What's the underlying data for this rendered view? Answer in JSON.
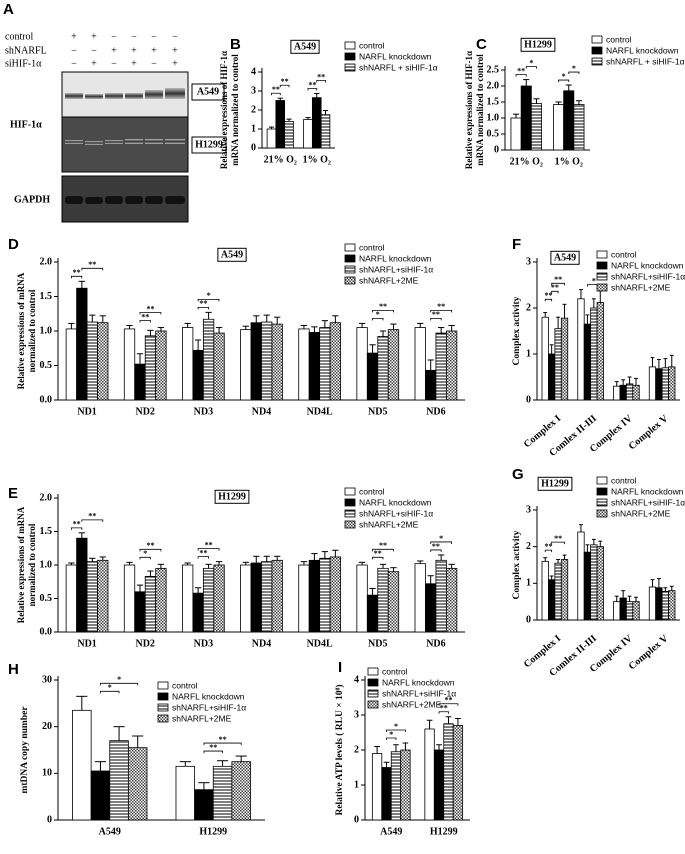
{
  "blot": {
    "panel": "A",
    "rows": [
      {
        "label": "control",
        "signs": [
          "+",
          "+",
          "−",
          "−",
          "−",
          "−"
        ]
      },
      {
        "label": "shNARFL",
        "signs": [
          "−",
          "−",
          "+",
          "+",
          "+",
          "+"
        ]
      },
      {
        "label": "siHIF-1α",
        "signs": [
          "−",
          "+",
          "−",
          "+",
          "−",
          "+"
        ]
      }
    ],
    "protein": "HIF-1α",
    "cells": [
      "A549",
      "H1299"
    ],
    "loading": "GAPDH"
  },
  "chart_data": [
    {
      "type": "bar",
      "panel": "B",
      "title": "A549",
      "ylabel": [
        "Relative expressions of HIF-1α",
        "mRNA normalized to control"
      ],
      "categories": [
        "21% O₂",
        "1% O₂"
      ],
      "ylim": [
        0,
        4
      ],
      "yticks": [
        0,
        1,
        2,
        3,
        4
      ],
      "series": [
        {
          "name": "control",
          "color": "#ffffff",
          "hatch": "none",
          "values": [
            1.0,
            1.5
          ],
          "errors": [
            0.1,
            0.1
          ]
        },
        {
          "name": "NARFL knockdown",
          "color": "#000000",
          "hatch": "none",
          "values": [
            2.5,
            2.65
          ],
          "errors": [
            0.12,
            0.22
          ]
        },
        {
          "name": "shNARFL + siHIF-1α",
          "color": "#ffffff",
          "hatch": "hlines",
          "values": [
            1.4,
            1.75
          ],
          "errors": [
            0.12,
            0.22
          ]
        }
      ],
      "brackets": [
        [
          0,
          0,
          1,
          "**"
        ],
        [
          0,
          1,
          2,
          "**"
        ],
        [
          1,
          0,
          1,
          "**"
        ],
        [
          1,
          1,
          2,
          "**"
        ]
      ]
    },
    {
      "type": "bar",
      "panel": "C",
      "title": "H1299",
      "ylabel": [
        "Relative expressions of HIF-1α",
        "mRNA normalized to control"
      ],
      "categories": [
        "21% O₂",
        "1% O₂"
      ],
      "ylim": [
        0,
        2.5
      ],
      "yticks": [
        0,
        0.5,
        {
          "value": 1,
          "label": "1.0"
        },
        1.5,
        {
          "value": 2,
          "label": "2.0"
        },
        2.5
      ],
      "series": [
        {
          "name": "control",
          "color": "#ffffff",
          "hatch": "none",
          "values": [
            1.0,
            1.42
          ],
          "errors": [
            0.12,
            0.08
          ]
        },
        {
          "name": "NARFL knockdown",
          "color": "#000000",
          "hatch": "none",
          "values": [
            2.0,
            1.85
          ],
          "errors": [
            0.2,
            0.18
          ]
        },
        {
          "name": "shNARFL + siHIF-1α",
          "color": "#ffffff",
          "hatch": "hlines",
          "values": [
            1.45,
            1.42
          ],
          "errors": [
            0.15,
            0.12
          ]
        }
      ],
      "brackets": [
        [
          0,
          0,
          1,
          "**"
        ],
        [
          0,
          1,
          2,
          "*"
        ],
        [
          1,
          0,
          1,
          "*"
        ],
        [
          1,
          1,
          2,
          "*"
        ]
      ]
    },
    {
      "type": "bar",
      "panel": "D",
      "title": "A549",
      "ylabel": [
        "Relative expressions of mRNA",
        "normalized to control"
      ],
      "categories": [
        "ND1",
        "ND2",
        "ND3",
        "ND4",
        "ND4L",
        "ND5",
        "ND6"
      ],
      "ylim": [
        0,
        2
      ],
      "yticks": [
        {
          "value": 0,
          "label": "0.0"
        },
        0.5,
        {
          "value": 1,
          "label": "1.0"
        },
        1.5,
        {
          "value": 2,
          "label": "2.0"
        }
      ],
      "series": [
        {
          "name": "control",
          "color": "#ffffff",
          "hatch": "none",
          "values": [
            1.03,
            1.03,
            1.05,
            1.02,
            1.03,
            1.05,
            1.05
          ],
          "errors": [
            0.08,
            0.05,
            0.06,
            0.05,
            0.05,
            0.06,
            0.06
          ]
        },
        {
          "name": "NARFL knockdown",
          "color": "#000000",
          "hatch": "none",
          "values": [
            1.62,
            0.52,
            0.72,
            1.12,
            0.98,
            0.68,
            0.43
          ],
          "errors": [
            0.1,
            0.15,
            0.15,
            0.1,
            0.08,
            0.12,
            0.15
          ]
        },
        {
          "name": "shNARFL+siHIF-1α",
          "color": "#ffffff",
          "hatch": "hlines",
          "values": [
            1.13,
            0.93,
            1.17,
            1.13,
            1.05,
            0.92,
            0.97
          ],
          "errors": [
            0.1,
            0.08,
            0.1,
            0.1,
            0.1,
            0.08,
            0.08
          ]
        },
        {
          "name": "shNARFL+2ME",
          "color": "#ffffff",
          "hatch": "checker",
          "values": [
            1.12,
            1.0,
            0.97,
            1.1,
            1.12,
            1.02,
            1.0
          ],
          "errors": [
            0.1,
            0.05,
            0.08,
            0.1,
            0.1,
            0.08,
            0.08
          ]
        }
      ],
      "brackets": [
        [
          0,
          0,
          1,
          "**"
        ],
        [
          0,
          1,
          3,
          "**"
        ],
        [
          1,
          1,
          2,
          "**"
        ],
        [
          1,
          1,
          3,
          "**"
        ],
        [
          2,
          1,
          2,
          "**"
        ],
        [
          2,
          1,
          3,
          "*"
        ],
        [
          5,
          1,
          2,
          "*"
        ],
        [
          5,
          1,
          3,
          "**"
        ],
        [
          6,
          1,
          2,
          "**"
        ],
        [
          6,
          1,
          3,
          "**"
        ]
      ]
    },
    {
      "type": "bar",
      "panel": "E",
      "title": "H1299",
      "ylabel": [
        "Relative expressions of mRNA",
        "normalized to control"
      ],
      "categories": [
        "ND1",
        "ND2",
        "ND3",
        "ND4",
        "ND4L",
        "ND5",
        "ND6"
      ],
      "ylim": [
        0,
        2
      ],
      "yticks": [
        {
          "value": 0,
          "label": "0.0"
        },
        0.5,
        {
          "value": 1,
          "label": "1.0"
        },
        1.5,
        {
          "value": 2,
          "label": "2.0"
        }
      ],
      "series": [
        {
          "name": "control",
          "color": "#ffffff",
          "hatch": "none",
          "values": [
            1.0,
            1.0,
            1.0,
            1.0,
            1.0,
            1.0,
            1.02
          ],
          "errors": [
            0.03,
            0.04,
            0.03,
            0.04,
            0.05,
            0.04,
            0.04
          ]
        },
        {
          "name": "NARFL knockdown",
          "color": "#000000",
          "hatch": "none",
          "values": [
            1.4,
            0.6,
            0.58,
            1.03,
            1.07,
            0.55,
            0.72
          ],
          "errors": [
            0.08,
            0.1,
            0.08,
            0.1,
            0.1,
            0.1,
            0.12
          ]
        },
        {
          "name": "shNARFL+siHIF-1α",
          "color": "#ffffff",
          "hatch": "hlines",
          "values": [
            1.05,
            0.83,
            0.95,
            1.05,
            1.1,
            0.95,
            1.07
          ],
          "errors": [
            0.05,
            0.08,
            0.06,
            0.08,
            0.1,
            0.06,
            0.08
          ]
        },
        {
          "name": "shNARFL+2ME",
          "color": "#ffffff",
          "hatch": "checker",
          "values": [
            1.07,
            0.95,
            1.0,
            1.07,
            1.12,
            0.9,
            0.95
          ],
          "errors": [
            0.05,
            0.06,
            0.05,
            0.06,
            0.1,
            0.06,
            0.06
          ]
        }
      ],
      "brackets": [
        [
          0,
          0,
          1,
          "**"
        ],
        [
          0,
          1,
          3,
          "**"
        ],
        [
          1,
          1,
          2,
          "*"
        ],
        [
          1,
          1,
          3,
          "**"
        ],
        [
          2,
          1,
          2,
          "**"
        ],
        [
          2,
          1,
          3,
          "**"
        ],
        [
          5,
          1,
          2,
          "**"
        ],
        [
          5,
          1,
          3,
          "**"
        ],
        [
          6,
          1,
          2,
          "**"
        ],
        [
          6,
          1,
          3,
          "*"
        ]
      ]
    },
    {
      "type": "bar",
      "panel": "F",
      "title": "A549",
      "ylabel": [
        "Complex activity"
      ],
      "categories": [
        "Complex I",
        "Comlex II-III",
        "Complex IV",
        "Complex V"
      ],
      "ylim": [
        0,
        3
      ],
      "yticks": [
        0,
        1,
        2,
        3
      ],
      "series": [
        {
          "name": "control",
          "color": "#ffffff",
          "hatch": "none",
          "values": [
            1.8,
            2.2,
            0.3,
            0.72
          ],
          "errors": [
            0.1,
            0.2,
            0.1,
            0.2
          ]
        },
        {
          "name": "NARFL knockdown",
          "color": "#000000",
          "hatch": "none",
          "values": [
            1.0,
            1.65,
            0.32,
            0.68
          ],
          "errors": [
            0.2,
            0.2,
            0.12,
            0.2
          ]
        },
        {
          "name": "shNARFL+siHIF-1α",
          "color": "#ffffff",
          "hatch": "hlines",
          "values": [
            1.55,
            2.0,
            0.35,
            0.7
          ],
          "errors": [
            0.25,
            0.2,
            0.15,
            0.2
          ]
        },
        {
          "name": "shNARFL+2ME",
          "color": "#ffffff",
          "hatch": "checker",
          "values": [
            1.78,
            2.12,
            0.32,
            0.72
          ],
          "errors": [
            0.3,
            0.25,
            0.15,
            0.25
          ]
        }
      ],
      "brackets": [
        [
          0,
          0,
          1,
          "**"
        ],
        [
          0,
          1,
          2,
          "**"
        ],
        [
          0,
          1,
          3,
          "**"
        ],
        [
          1,
          1,
          3,
          "*"
        ]
      ]
    },
    {
      "type": "bar",
      "panel": "G",
      "title": "H1299",
      "ylabel": [
        "Complex activity"
      ],
      "categories": [
        "Complex I",
        "Comlex II-III",
        "Complex IV",
        "Complex V"
      ],
      "ylim": [
        0,
        3
      ],
      "yticks": [
        0,
        1,
        2,
        3
      ],
      "series": [
        {
          "name": "control",
          "color": "#ffffff",
          "hatch": "none",
          "values": [
            1.6,
            2.4,
            0.5,
            0.9
          ],
          "errors": [
            0.1,
            0.2,
            0.15,
            0.2
          ]
        },
        {
          "name": "NARFL knockdown",
          "color": "#000000",
          "hatch": "none",
          "values": [
            1.1,
            1.85,
            0.6,
            0.88
          ],
          "errors": [
            0.1,
            0.2,
            0.2,
            0.25
          ]
        },
        {
          "name": "shNARFL+siHIF-1ɑ",
          "color": "#ffffff",
          "hatch": "hlines",
          "values": [
            1.55,
            2.05,
            0.5,
            0.78
          ],
          "errors": [
            0.1,
            0.15,
            0.15,
            0.1
          ]
        },
        {
          "name": "shNARFL+2ME",
          "color": "#ffffff",
          "hatch": "checker",
          "values": [
            1.65,
            2.0,
            0.5,
            0.8
          ],
          "errors": [
            0.12,
            0.15,
            0.12,
            0.12
          ]
        }
      ],
      "brackets": [
        [
          0,
          0,
          1,
          "**"
        ],
        [
          0,
          1,
          3,
          "**"
        ]
      ]
    },
    {
      "type": "bar",
      "panel": "H",
      "title": null,
      "ylabel": [
        "mtDNA copy number"
      ],
      "categories": [
        "A549",
        "H1299"
      ],
      "ylim": [
        0,
        30
      ],
      "yticks": [
        0,
        10,
        20,
        30
      ],
      "series": [
        {
          "name": "control",
          "color": "#ffffff",
          "hatch": "none",
          "values": [
            23.5,
            11.5
          ],
          "errors": [
            3,
            1
          ]
        },
        {
          "name": "NARFL knockdown",
          "color": "#000000",
          "hatch": "none",
          "values": [
            10.5,
            6.5
          ],
          "errors": [
            2,
            1.5
          ]
        },
        {
          "name": "shNARFL+siHIF-1α",
          "color": "#ffffff",
          "hatch": "hlines",
          "values": [
            17,
            11.5
          ],
          "errors": [
            3,
            1.2
          ]
        },
        {
          "name": "shNARFL+2ME",
          "color": "#ffffff",
          "hatch": "checker",
          "values": [
            15.5,
            12.5
          ],
          "errors": [
            2.5,
            1.2
          ]
        }
      ],
      "brackets": [
        [
          0,
          1,
          2,
          "*"
        ],
        [
          0,
          1,
          3,
          "*"
        ],
        [
          1,
          1,
          2,
          "**"
        ],
        [
          1,
          1,
          3,
          "**"
        ]
      ]
    },
    {
      "type": "bar",
      "panel": "I",
      "title": null,
      "ylabel": [
        "Relative ATP levels ( RLU × 10⁸)"
      ],
      "categories": [
        "A549",
        "H1299"
      ],
      "ylim": [
        0,
        4
      ],
      "yticks": [
        0,
        1,
        2,
        3,
        4
      ],
      "series": [
        {
          "name": "control",
          "color": "#ffffff",
          "hatch": "none",
          "values": [
            1.9,
            2.6
          ],
          "errors": [
            0.2,
            0.25
          ]
        },
        {
          "name": "NARFL knockdown",
          "color": "#000000",
          "hatch": "none",
          "values": [
            1.5,
            2.0
          ],
          "errors": [
            0.15,
            0.15
          ]
        },
        {
          "name": "shNARFL+siHIF-1α",
          "color": "#ffffff",
          "hatch": "hlines",
          "values": [
            1.95,
            2.75
          ],
          "errors": [
            0.2,
            0.2
          ]
        },
        {
          "name": "shNARFL+2ME",
          "color": "#ffffff",
          "hatch": "checker",
          "values": [
            2.0,
            2.7
          ],
          "errors": [
            0.2,
            0.2
          ]
        }
      ],
      "brackets": [
        [
          0,
          1,
          2,
          "*"
        ],
        [
          0,
          1,
          3,
          "*"
        ],
        [
          1,
          1,
          2,
          "**"
        ],
        [
          1,
          1,
          3,
          "**"
        ]
      ]
    }
  ]
}
